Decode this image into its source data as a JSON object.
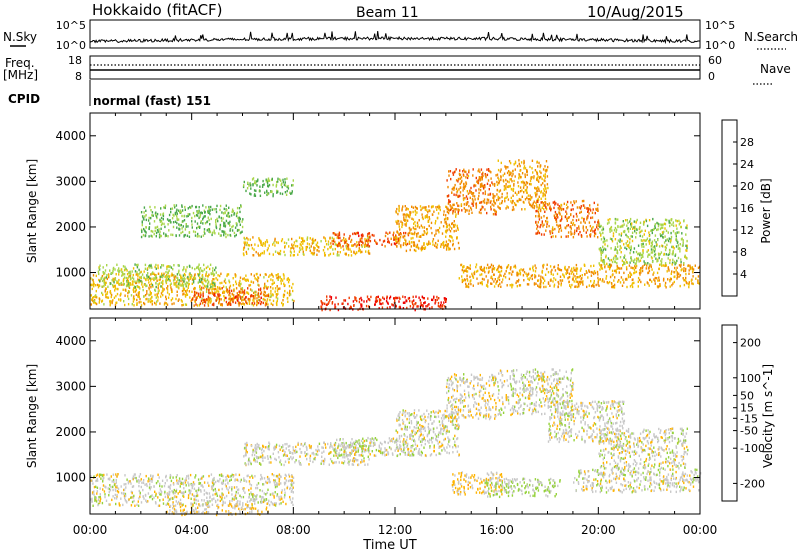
{
  "header": {
    "station": "Hokkaido (fitACF)",
    "beam": "Beam 11",
    "date": "10/Aug/2015"
  },
  "top_panels": {
    "nsky": {
      "label": "N.Sky",
      "ticks": [
        "10^5",
        "10^0"
      ],
      "right_label": "N.Search",
      "right_ticks": [
        "10^5",
        "10^0"
      ]
    },
    "freq": {
      "label_line1": "Freq.",
      "label_line2": "[MHz]",
      "ticks": [
        "18",
        "8"
      ],
      "right_label": "Nave",
      "right_ticks": [
        "60",
        "0"
      ]
    },
    "cpid": {
      "label": "CPID",
      "text": "normal (fast) 151"
    }
  },
  "colors": {
    "power": [
      "#0000ee",
      "#1a4aa6",
      "#2e8c55",
      "#4aa84a",
      "#a8d64a",
      "#f0c000",
      "#f08c00",
      "#f03c00",
      "#ee0000"
    ],
    "velocity": [
      "#ee0000",
      "#ff4a00",
      "#ff8c00",
      "#ffb400",
      "#c8c8c8",
      "#96d23c",
      "#3a9a3a",
      "#1f5aa8",
      "#2020c8"
    ]
  },
  "chart_data": [
    {
      "type": "heatmap",
      "title": "",
      "xlabel": "",
      "ylabel": "Slant Range [km]",
      "x_ticks": [
        "00:00",
        "04:00",
        "08:00",
        "12:00",
        "16:00",
        "20:00",
        "00:00"
      ],
      "y_ticks": [
        1000,
        2000,
        3000,
        4000
      ],
      "xlim_hours": [
        0,
        24
      ],
      "ylim_km": [
        200,
        4500
      ],
      "colorbar": {
        "label": "Power [dB]",
        "ticks": [
          4,
          8,
          12,
          16,
          20,
          24,
          28
        ],
        "range": [
          0,
          32
        ]
      },
      "features": [
        {
          "t_start": 0.0,
          "t_end": 8.0,
          "range_start": 300,
          "range_end": 1000,
          "level": 20
        },
        {
          "t_start": 0.3,
          "t_end": 5.0,
          "range_start": 700,
          "range_end": 1200,
          "level": 16
        },
        {
          "t_start": 4.0,
          "t_end": 7.0,
          "range_start": 300,
          "range_end": 700,
          "level": 26
        },
        {
          "t_start": 6.0,
          "t_end": 11.0,
          "range_start": 1400,
          "range_end": 1800,
          "level": 20
        },
        {
          "t_start": 9.5,
          "t_end": 12.5,
          "range_start": 1600,
          "range_end": 1900,
          "level": 26
        },
        {
          "t_start": 9.0,
          "t_end": 14.0,
          "range_start": 200,
          "range_end": 500,
          "level": 28
        },
        {
          "t_start": 12.0,
          "t_end": 14.5,
          "range_start": 1500,
          "range_end": 2500,
          "level": 22
        },
        {
          "t_start": 14.0,
          "t_end": 16.0,
          "range_start": 2300,
          "range_end": 3300,
          "level": 24
        },
        {
          "t_start": 14.5,
          "t_end": 24.0,
          "range_start": 700,
          "range_end": 1200,
          "level": 22
        },
        {
          "t_start": 16.0,
          "t_end": 18.0,
          "range_start": 2400,
          "range_end": 3500,
          "level": 22
        },
        {
          "t_start": 17.5,
          "t_end": 20.0,
          "range_start": 1800,
          "range_end": 2600,
          "level": 24
        },
        {
          "t_start": 20.0,
          "t_end": 23.5,
          "range_start": 1200,
          "range_end": 2200,
          "level": 16
        },
        {
          "t_start": 6.0,
          "t_end": 8.0,
          "range_start": 2700,
          "range_end": 3100,
          "level": 14
        },
        {
          "t_start": 2.0,
          "t_end": 6.0,
          "range_start": 1800,
          "range_end": 2500,
          "level": 14
        }
      ]
    },
    {
      "type": "heatmap",
      "title": "",
      "xlabel": "Time UT",
      "ylabel": "Slant Range [km]",
      "x_ticks": [
        "00:00",
        "04:00",
        "08:00",
        "12:00",
        "16:00",
        "20:00",
        "00:00"
      ],
      "y_ticks": [
        1000,
        2000,
        3000,
        4000
      ],
      "xlim_hours": [
        0,
        24
      ],
      "ylim_km": [
        200,
        4500
      ],
      "colorbar": {
        "label": "Velocity [m s^-1]",
        "ticks": [
          -200,
          -100,
          -50,
          -15,
          15,
          50,
          100,
          200
        ],
        "range": [
          -250,
          250
        ]
      },
      "features": [
        {
          "t_start": 0.0,
          "t_end": 8.0,
          "range_start": 400,
          "range_end": 1100,
          "level": 0
        },
        {
          "t_start": 6.0,
          "t_end": 11.0,
          "range_start": 1300,
          "range_end": 1800,
          "level": 0
        },
        {
          "t_start": 9.5,
          "t_end": 13.0,
          "range_start": 1500,
          "range_end": 1900,
          "level": 5
        },
        {
          "t_start": 12.0,
          "t_end": 14.5,
          "range_start": 1500,
          "range_end": 2500,
          "level": 0
        },
        {
          "t_start": 14.0,
          "t_end": 16.0,
          "range_start": 2300,
          "range_end": 3300,
          "level": -10
        },
        {
          "t_start": 14.2,
          "t_end": 16.2,
          "range_start": 650,
          "range_end": 1150,
          "level": -40
        },
        {
          "t_start": 15.5,
          "t_end": 18.5,
          "range_start": 600,
          "range_end": 1000,
          "level": 35
        },
        {
          "t_start": 16.0,
          "t_end": 19.0,
          "range_start": 2400,
          "range_end": 3400,
          "level": 0
        },
        {
          "t_start": 18.0,
          "t_end": 21.0,
          "range_start": 1800,
          "range_end": 2700,
          "level": 0
        },
        {
          "t_start": 19.0,
          "t_end": 24.0,
          "range_start": 700,
          "range_end": 1200,
          "level": 0
        },
        {
          "t_start": 20.0,
          "t_end": 23.5,
          "range_start": 1200,
          "range_end": 2100,
          "level": 0
        },
        {
          "t_start": 3.0,
          "t_end": 7.0,
          "range_start": 200,
          "range_end": 450,
          "level": -30
        }
      ]
    }
  ]
}
